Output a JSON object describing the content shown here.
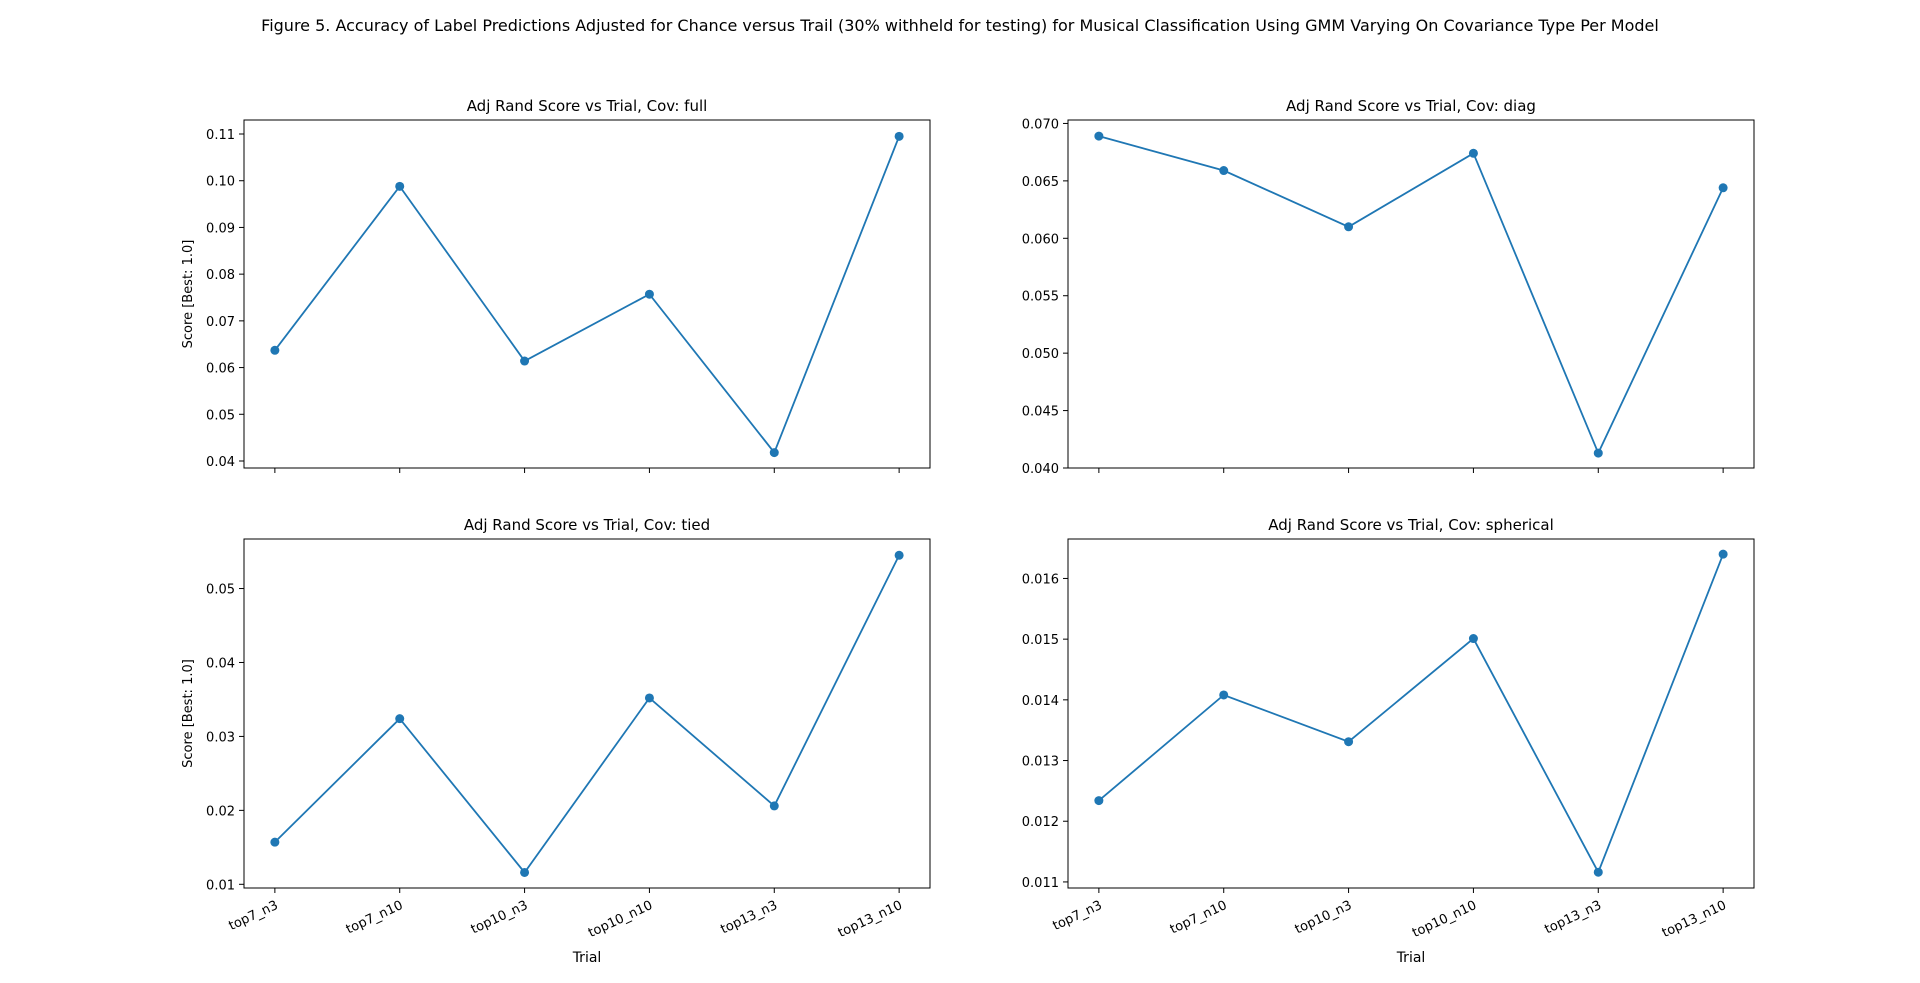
{
  "figure_title": "Figure 5. Accuracy of Label Predictions Adjusted for Chance versus Trail (30% withheld for testing) for Musical Classification Using GMM Varying On Covariance Type Per Model",
  "colors": {
    "series": "#1f77b4",
    "axes": "#000000",
    "background": "#ffffff"
  },
  "chart_data": [
    {
      "type": "line",
      "title": "Adj Rand Score vs Trial, Cov: full",
      "xlabel": "",
      "ylabel": "Score [Best: 1.0]",
      "categories": [
        "top7_n3",
        "top7_n10",
        "top10_n3",
        "top10_n10",
        "top13_n3",
        "top13_n10"
      ],
      "values": [
        0.0637,
        0.0988,
        0.0614,
        0.0757,
        0.0418,
        0.1095
      ],
      "ylim": [
        0.0385,
        0.113
      ],
      "yticks": [
        "0.04",
        "0.05",
        "0.06",
        "0.07",
        "0.08",
        "0.09",
        "0.10",
        "0.11"
      ],
      "show_xticklabels": false,
      "grid": false,
      "markers": true
    },
    {
      "type": "line",
      "title": "Adj Rand Score vs Trial, Cov: diag",
      "xlabel": "",
      "ylabel": "",
      "categories": [
        "top7_n3",
        "top7_n10",
        "top10_n3",
        "top10_n10",
        "top13_n3",
        "top13_n10"
      ],
      "values": [
        0.0689,
        0.0659,
        0.061,
        0.0674,
        0.0413,
        0.0644
      ],
      "ylim": [
        0.04,
        0.0703
      ],
      "yticks": [
        "0.040",
        "0.045",
        "0.050",
        "0.055",
        "0.060",
        "0.065",
        "0.070"
      ],
      "show_xticklabels": false,
      "grid": false,
      "markers": true
    },
    {
      "type": "line",
      "title": "Adj Rand Score vs Trial, Cov: tied",
      "xlabel": "Trial",
      "ylabel": "Score [Best: 1.0]",
      "categories": [
        "top7_n3",
        "top7_n10",
        "top10_n3",
        "top10_n10",
        "top13_n3",
        "top13_n10"
      ],
      "values": [
        0.0157,
        0.0324,
        0.0116,
        0.0352,
        0.0206,
        0.0545
      ],
      "ylim": [
        0.0095,
        0.0567
      ],
      "yticks": [
        "0.01",
        "0.02",
        "0.03",
        "0.04",
        "0.05"
      ],
      "show_xticklabels": true,
      "grid": false,
      "markers": true
    },
    {
      "type": "line",
      "title": "Adj Rand Score vs Trial, Cov: spherical",
      "xlabel": "Trial",
      "ylabel": "",
      "categories": [
        "top7_n3",
        "top7_n10",
        "top10_n3",
        "top10_n10",
        "top13_n3",
        "top13_n10"
      ],
      "values": [
        0.01234,
        0.01408,
        0.01331,
        0.01501,
        0.01116,
        0.0164
      ],
      "ylim": [
        0.0109,
        0.01665
      ],
      "yticks": [
        "0.011",
        "0.012",
        "0.013",
        "0.014",
        "0.015",
        "0.016"
      ],
      "show_xticklabels": true,
      "grid": false,
      "markers": true
    }
  ]
}
